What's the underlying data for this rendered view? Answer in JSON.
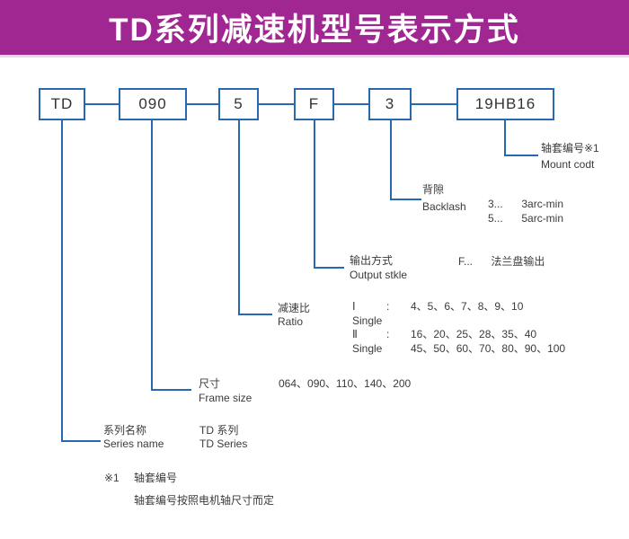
{
  "header": {
    "title": "TD系列减速机型号表示方式"
  },
  "colors": {
    "banner": "#a02691",
    "banner_strip": "#e9d9e9",
    "line_blue": "#2968b1",
    "text": "#3b3b3b"
  },
  "model_code": {
    "boxes": [
      {
        "label": "TD"
      },
      {
        "label": "090"
      },
      {
        "label": "5"
      },
      {
        "label": "F"
      },
      {
        "label": "3"
      },
      {
        "label": "19HB16"
      }
    ]
  },
  "annotations": {
    "mount": {
      "zh": "轴套编号※1",
      "en": "Mount codt"
    },
    "backlash": {
      "zh": "背隙",
      "en": "Backlash",
      "options": [
        {
          "code": "3...",
          "desc": "3arc-min"
        },
        {
          "code": "5...",
          "desc": "5arc-min"
        }
      ]
    },
    "output": {
      "zh": "输出方式",
      "en": "Output stkle",
      "code": "F...",
      "desc": "法兰盘输出"
    },
    "ratio": {
      "zh": "减速比",
      "en": "Ratio",
      "rows": [
        {
          "c1": "Ⅰ",
          "c2": ":",
          "c3": "4、5、6、7、8、9、10"
        },
        {
          "c1": "Single",
          "c2": "",
          "c3": ""
        },
        {
          "c1": "Ⅱ",
          "c2": ":",
          "c3": "16、20、25、28、35、40"
        },
        {
          "c1": "Single",
          "c2": "",
          "c3": "45、50、60、70、80、90、100"
        }
      ]
    },
    "frame_size": {
      "zh": "尺寸",
      "en": "Frame size",
      "values": "064、090、110、140、200"
    },
    "series": {
      "zh": "系列名称",
      "en": "Series name",
      "value_zh": "TD 系列",
      "value_en": "TD Series"
    }
  },
  "footnote": {
    "marker": "※1",
    "title": "轴套编号",
    "note": "轴套编号按照电机轴尺寸而定"
  }
}
